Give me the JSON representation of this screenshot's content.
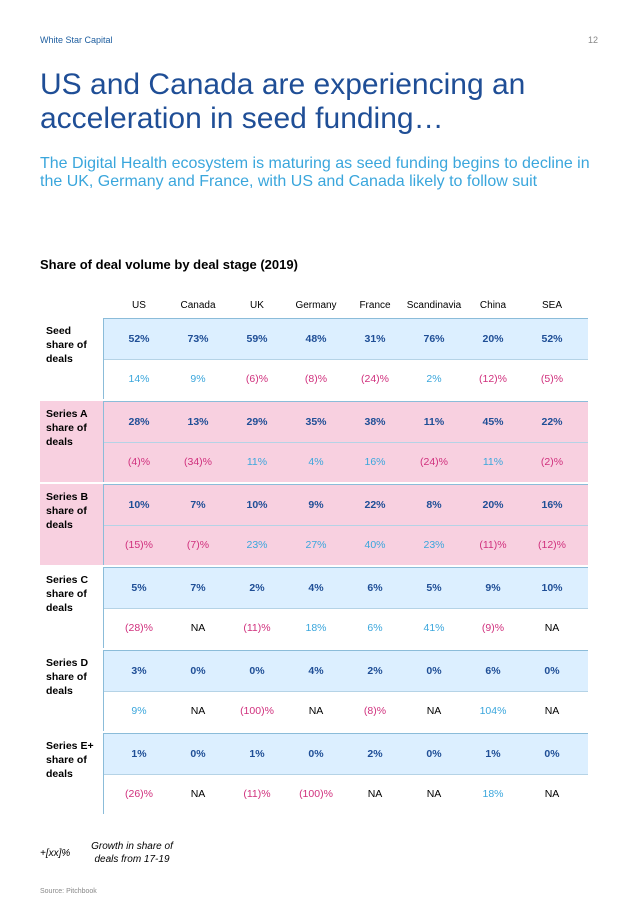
{
  "header": {
    "brand": "White Star Capital",
    "page_number": "12"
  },
  "title": "US and Canada are experiencing an acceleration in seed funding…",
  "subtitle": "The Digital Health ecosystem is maturing as seed funding begins to decline in the UK, Germany and France, with US and Canada likely to follow suit",
  "table_title": "Share of deal volume by deal stage (2019)",
  "columns": [
    "US",
    "Canada",
    "UK",
    "Germany",
    "France",
    "Scandinavia",
    "China",
    "SEA"
  ],
  "groups": [
    {
      "label": "Seed\nshare of\ndeals",
      "style": "blue",
      "share": [
        "52%",
        "73%",
        "59%",
        "48%",
        "31%",
        "76%",
        "20%",
        "52%"
      ],
      "growth": [
        "14%",
        "9%",
        "(6)%",
        "(8)%",
        "(24)%",
        "2%",
        "(12)%",
        "(5)%"
      ]
    },
    {
      "label": "Series A\nshare of\ndeals",
      "style": "pink",
      "share": [
        "28%",
        "13%",
        "29%",
        "35%",
        "38%",
        "11%",
        "45%",
        "22%"
      ],
      "growth": [
        "(4)%",
        "(34)%",
        "11%",
        "4%",
        "16%",
        "(24)%",
        "11%",
        "(2)%"
      ]
    },
    {
      "label": "Series B\nshare of\ndeals",
      "style": "pink",
      "share": [
        "10%",
        "7%",
        "10%",
        "9%",
        "22%",
        "8%",
        "20%",
        "16%"
      ],
      "growth": [
        "(15)%",
        "(7)%",
        "23%",
        "27%",
        "40%",
        "23%",
        "(11)%",
        "(12)%"
      ]
    },
    {
      "label": "Series C\nshare of\ndeals",
      "style": "blue",
      "share": [
        "5%",
        "7%",
        "2%",
        "4%",
        "6%",
        "5%",
        "9%",
        "10%"
      ],
      "growth": [
        "(28)%",
        "NA",
        "(11)%",
        "18%",
        "6%",
        "41%",
        "(9)%",
        "NA"
      ]
    },
    {
      "label": "Series D\nshare of\ndeals",
      "style": "blue",
      "share": [
        "3%",
        "0%",
        "0%",
        "4%",
        "2%",
        "0%",
        "6%",
        "0%"
      ],
      "growth": [
        "9%",
        "NA",
        "(100)%",
        "NA",
        "(8)%",
        "NA",
        "104%",
        "NA"
      ]
    },
    {
      "label": "Series E+\nshare of\ndeals",
      "style": "blue",
      "share": [
        "1%",
        "0%",
        "1%",
        "0%",
        "2%",
        "0%",
        "1%",
        "0%"
      ],
      "growth": [
        "(26)%",
        "NA",
        "(11)%",
        "(100)%",
        "NA",
        "NA",
        "18%",
        "NA"
      ]
    }
  ],
  "legend": {
    "key": "+[xx]%",
    "text": "Growth in share of deals from 17-19"
  },
  "source": "Source: Pitchbook",
  "colors": {
    "share_text": "#1f4e96",
    "positive": "#3aa6dc",
    "negative": "#d0307d",
    "blue_row": "#dcefff",
    "pink_row": "#f8d0e0"
  }
}
